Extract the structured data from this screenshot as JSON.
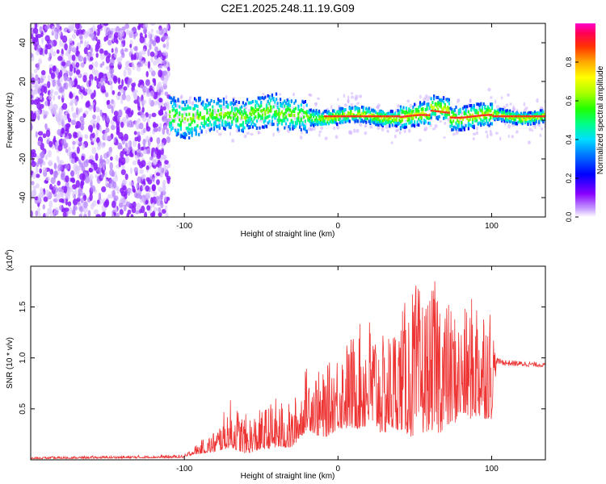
{
  "figure": {
    "title": "C2E1.2025.248.11.19.G09"
  },
  "chart_data": [
    {
      "type": "heatmap",
      "name": "spectrogram",
      "xlabel": "Height of straight line (km)",
      "ylabel": "Frequency (Hz)",
      "xlim": [
        -200,
        135
      ],
      "ylim": [
        -50,
        50
      ],
      "xticks": [
        -100,
        0,
        100
      ],
      "yticks": [
        -40,
        -20,
        0,
        20,
        40
      ],
      "colorbar": {
        "label": "Normalized spectral amplitude",
        "range": [
          0,
          1
        ],
        "ticks": [
          0.0,
          0.2,
          0.4,
          0.6,
          0.8
        ]
      },
      "description_regions": {
        "scattered_noise_x": [
          -200,
          -110
        ],
        "signal_center_freq_hz": 2,
        "strong_signal_x": [
          -10,
          135
        ]
      }
    },
    {
      "type": "line",
      "name": "snr",
      "xlabel": "Height of straight line (km)",
      "ylabel": "SNR (10 * v/v)",
      "scale_label": "(x10",
      "scale_exp": "4",
      "scale_close": ")",
      "xlim": [
        -200,
        135
      ],
      "ylim": [
        0,
        1.9
      ],
      "xticks": [
        -100,
        0,
        100
      ],
      "yticks": [
        0.5,
        1.0,
        1.5
      ],
      "color": "#ee3333",
      "envelope": {
        "x": [
          -200,
          -100,
          -95,
          -80,
          -70,
          -60,
          -50,
          -40,
          -30,
          -20,
          -10,
          0,
          10,
          20,
          30,
          40,
          50,
          60,
          65,
          70,
          80,
          90,
          100,
          103,
          110,
          135
        ],
        "base": [
          0.01,
          0.02,
          0.05,
          0.08,
          0.12,
          0.06,
          0.1,
          0.12,
          0.12,
          0.3,
          0.2,
          0.3,
          0.3,
          0.3,
          0.25,
          0.3,
          0.2,
          0.3,
          0.25,
          0.3,
          0.4,
          0.4,
          0.4,
          0.9,
          0.88,
          0.88
        ],
        "peak": [
          0.03,
          0.05,
          0.12,
          0.3,
          0.6,
          0.45,
          0.5,
          0.62,
          0.55,
          0.95,
          0.85,
          1.1,
          1.25,
          1.45,
          1.2,
          1.45,
          1.75,
          1.6,
          1.9,
          1.6,
          1.4,
          1.7,
          1.55,
          1.0,
          0.98,
          0.95
        ]
      }
    }
  ]
}
